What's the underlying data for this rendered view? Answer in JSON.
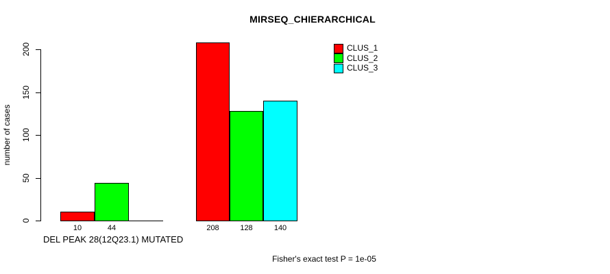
{
  "title": "MIRSEQ_CHIERARCHICAL",
  "y_axis": {
    "label": "number of cases"
  },
  "x_axis": {
    "label": "DEL PEAK 28(12Q23.1) MUTATED"
  },
  "footer": "Fisher's exact test P = 1e-05",
  "legend": {
    "items": [
      {
        "label": "CLUS_1",
        "color": "#ff0000"
      },
      {
        "label": "CLUS_2",
        "color": "#00ff00"
      },
      {
        "label": "CLUS_3",
        "color": "#00ffff"
      }
    ]
  },
  "chart_data": {
    "type": "bar",
    "title": "MIRSEQ_CHIERARCHICAL",
    "xlabel": "DEL PEAK 28(12Q23.1) MUTATED",
    "ylabel": "number of cases",
    "ylim": [
      0,
      200
    ],
    "yticks": [
      0,
      50,
      100,
      150,
      200
    ],
    "grid": false,
    "legend_position": "top-right",
    "bar_value_labels": true,
    "zero_values_unlabeled": true,
    "categories": [
      "DEL PEAK 28(12Q23.1) MUTATED",
      ""
    ],
    "series": [
      {
        "name": "CLUS_1",
        "color": "#ff0000",
        "values": [
          10,
          208
        ]
      },
      {
        "name": "CLUS_2",
        "color": "#00ff00",
        "values": [
          44,
          128
        ]
      },
      {
        "name": "CLUS_3",
        "color": "#00ffff",
        "values": [
          0,
          140
        ]
      }
    ]
  }
}
